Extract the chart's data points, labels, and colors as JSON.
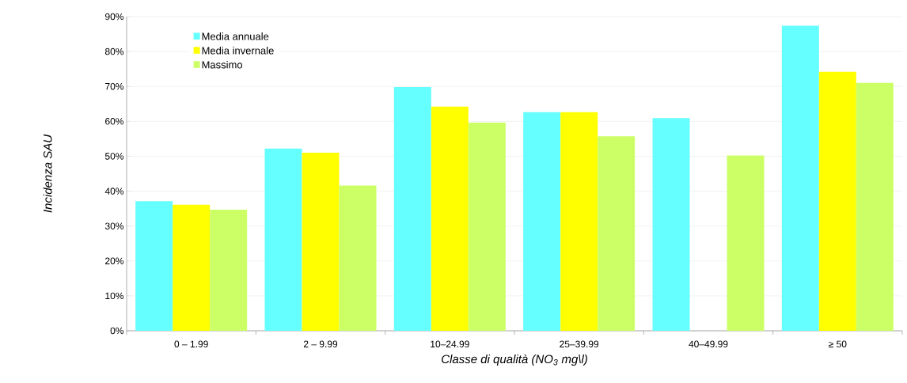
{
  "chart_data": {
    "type": "bar",
    "xlabel": "Classe di qualità (NO$_{3}$ mg\\l)",
    "ylabel": "Incidenza  SAU",
    "categories": [
      "0 – 1.99",
      "2 – 9.99",
      "10–24.99",
      "25–39.99",
      "40–49.99",
      "≥ 50"
    ],
    "series": [
      {
        "name": "Media annuale",
        "color": "#66ffff",
        "values": [
          37.1,
          52.2,
          69.8,
          62.6,
          60.9,
          87.4
        ]
      },
      {
        "name": "Media invernale",
        "color": "#ffff00",
        "values": [
          36.1,
          51.0,
          64.2,
          62.6,
          null,
          74.2
        ]
      },
      {
        "name": "Massimo",
        "color": "#ccff66",
        "values": [
          34.7,
          41.6,
          59.6,
          55.7,
          50.2,
          71.0
        ]
      }
    ],
    "ylim": [
      0,
      90
    ],
    "yticks": [
      {
        "value": 0,
        "label": "0%"
      },
      {
        "value": 10,
        "label": "10%"
      },
      {
        "value": 20,
        "label": "20%"
      },
      {
        "value": 30,
        "label": "30%"
      },
      {
        "value": 40,
        "label": "40%"
      },
      {
        "value": 50,
        "label": "50%"
      },
      {
        "value": 60,
        "label": "60%"
      },
      {
        "value": 70,
        "label": "70%"
      },
      {
        "value": 80,
        "label": "80%"
      },
      {
        "value": 90,
        "label": "90%"
      }
    ],
    "grid": "y",
    "legend": "top left"
  }
}
